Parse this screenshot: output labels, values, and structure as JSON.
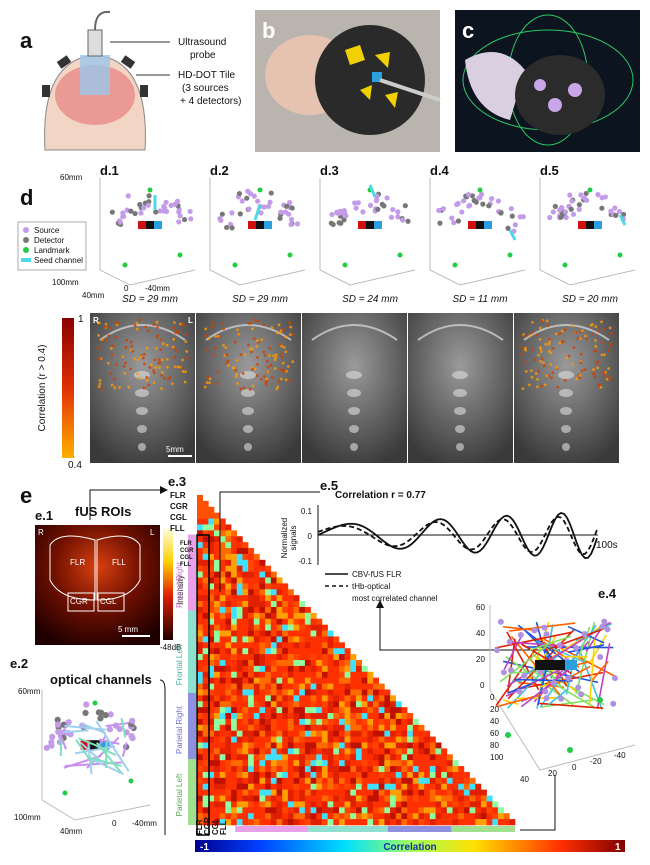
{
  "panel_a": {
    "label": "a",
    "probe_label": [
      "Ultrasound",
      "probe"
    ],
    "tile_label": [
      "HD-DOT Tile",
      "(3 sources",
      "+ 4 detectors)"
    ]
  },
  "panel_b": {
    "label": "b"
  },
  "panel_c": {
    "label": "c"
  },
  "panel_d": {
    "label": "d",
    "subplots": [
      {
        "label": "d.1",
        "sd": "SD = 29 mm"
      },
      {
        "label": "d.2",
        "sd": "SD = 29 mm"
      },
      {
        "label": "d.3",
        "sd": "SD = 24 mm"
      },
      {
        "label": "d.4",
        "sd": "SD = 11 mm"
      },
      {
        "label": "d.5",
        "sd": "SD = 20 mm"
      }
    ],
    "axes": {
      "z_top": "60mm",
      "y_far": "100mm",
      "x_left": "40mm",
      "x_mid": "0",
      "x_right": "-40mm"
    },
    "legend": [
      "Source",
      "Detector",
      "Landmark",
      "Seed channel"
    ],
    "colorbar": {
      "title": "Correlation (r > 0.4)",
      "max": "1",
      "min": "0.4"
    },
    "orientation": {
      "right": "R",
      "left": "L"
    },
    "scale_bar": "5mm"
  },
  "panel_e": {
    "label": "e",
    "e1": {
      "label": "e.1",
      "roi_title": "fUS ROIs",
      "rois": [
        "FLR",
        "CGR",
        "CGL",
        "FLL"
      ],
      "image_rois": [
        "FLR",
        "FLL",
        "CGR",
        "CGL"
      ],
      "orientation": [
        "R",
        "L"
      ],
      "scale_bar": "5 mm",
      "colorbar_title": "Intensity",
      "colorbar_min": "-48dB"
    },
    "e2": {
      "label": "e.2",
      "title": "optical channels",
      "axes": {
        "z_top": "60mm",
        "y_far": "100mm",
        "x_left": "40mm",
        "x_mid": "0",
        "x_right": "-40mm"
      }
    },
    "e3": {
      "label": "e.3",
      "top_labels": [
        "FLR",
        "CGR",
        "CGL",
        "FLL"
      ],
      "bottom_labels": [
        "FLR",
        "CGR",
        "CGL",
        "FLL"
      ],
      "regions": [
        "Frontal Right",
        "Frontal Left",
        "Parietal Right",
        "Parietal Left"
      ]
    },
    "e4": {
      "label": "e.4",
      "z_ticks": [
        "60",
        "40",
        "20",
        "0"
      ],
      "y_ticks": [
        "40",
        "20",
        "0",
        "-20",
        "-40"
      ],
      "x_ticks": [
        "0",
        "20",
        "40",
        "60",
        "80",
        "100"
      ]
    },
    "e5": {
      "label": "e.5",
      "title": "Correlation r = 0.77",
      "y_label": [
        "Normalized",
        "signals"
      ],
      "y_ticks": [
        "0.1",
        "0",
        "-0.1"
      ],
      "x_end": "100s",
      "legend": [
        [
          "CBV-fUS FLR"
        ],
        [
          "tHb-optical",
          "most correlated channel"
        ]
      ]
    },
    "colorbar": {
      "min": "-1",
      "title": "Correlation",
      "max": "1"
    }
  }
}
